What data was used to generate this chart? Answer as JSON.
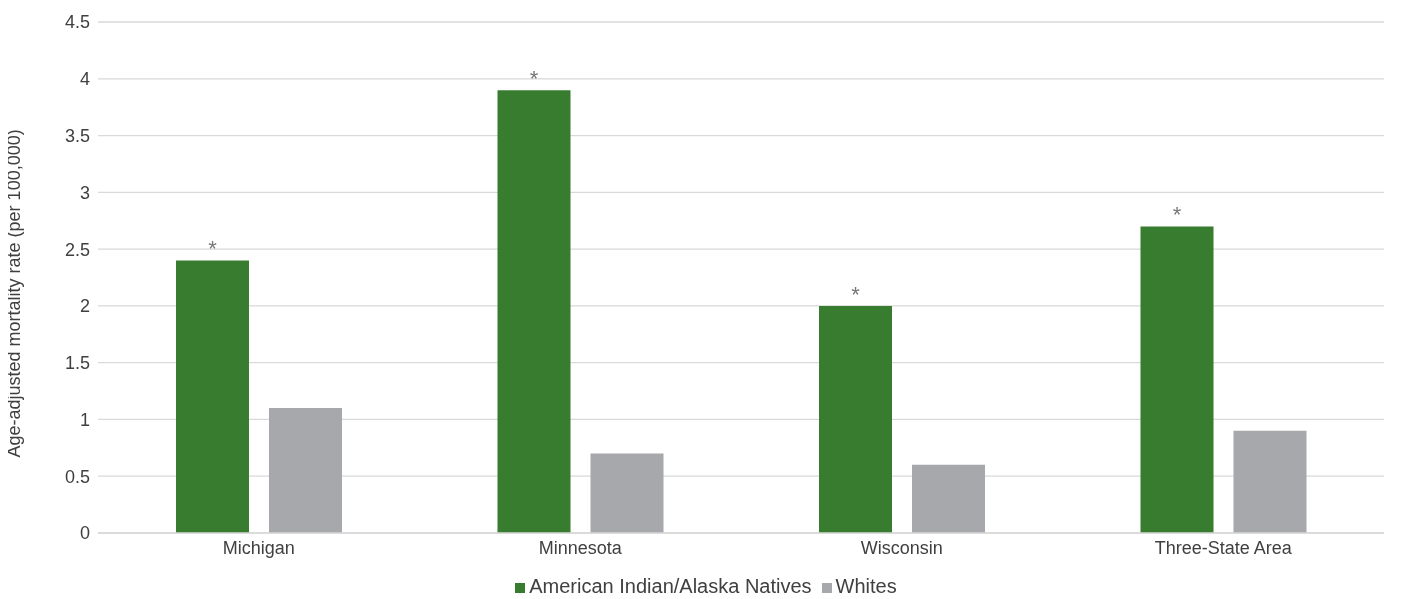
{
  "chart_data": {
    "type": "bar",
    "ylabel": "Age-adjusted mortality rate (per 100,000)",
    "categories": [
      "Michigan",
      "Minnesota",
      "Wisconsin",
      "Three-State Area"
    ],
    "series": [
      {
        "name": "American Indian/Alaska Natives",
        "color": "#387c2f",
        "values": [
          2.4,
          3.9,
          2.0,
          2.7
        ]
      },
      {
        "name": "Whites",
        "color": "#a7a8ab",
        "values": [
          1.1,
          0.7,
          0.6,
          0.9
        ]
      }
    ],
    "ylim": [
      0,
      4.5
    ],
    "yticks": [
      0,
      0.5,
      1,
      1.5,
      2,
      2.5,
      3,
      3.5,
      4,
      4.5
    ],
    "grid": "y",
    "legend": "bottom",
    "annotations": [
      "*",
      "*",
      "*",
      "*"
    ]
  }
}
